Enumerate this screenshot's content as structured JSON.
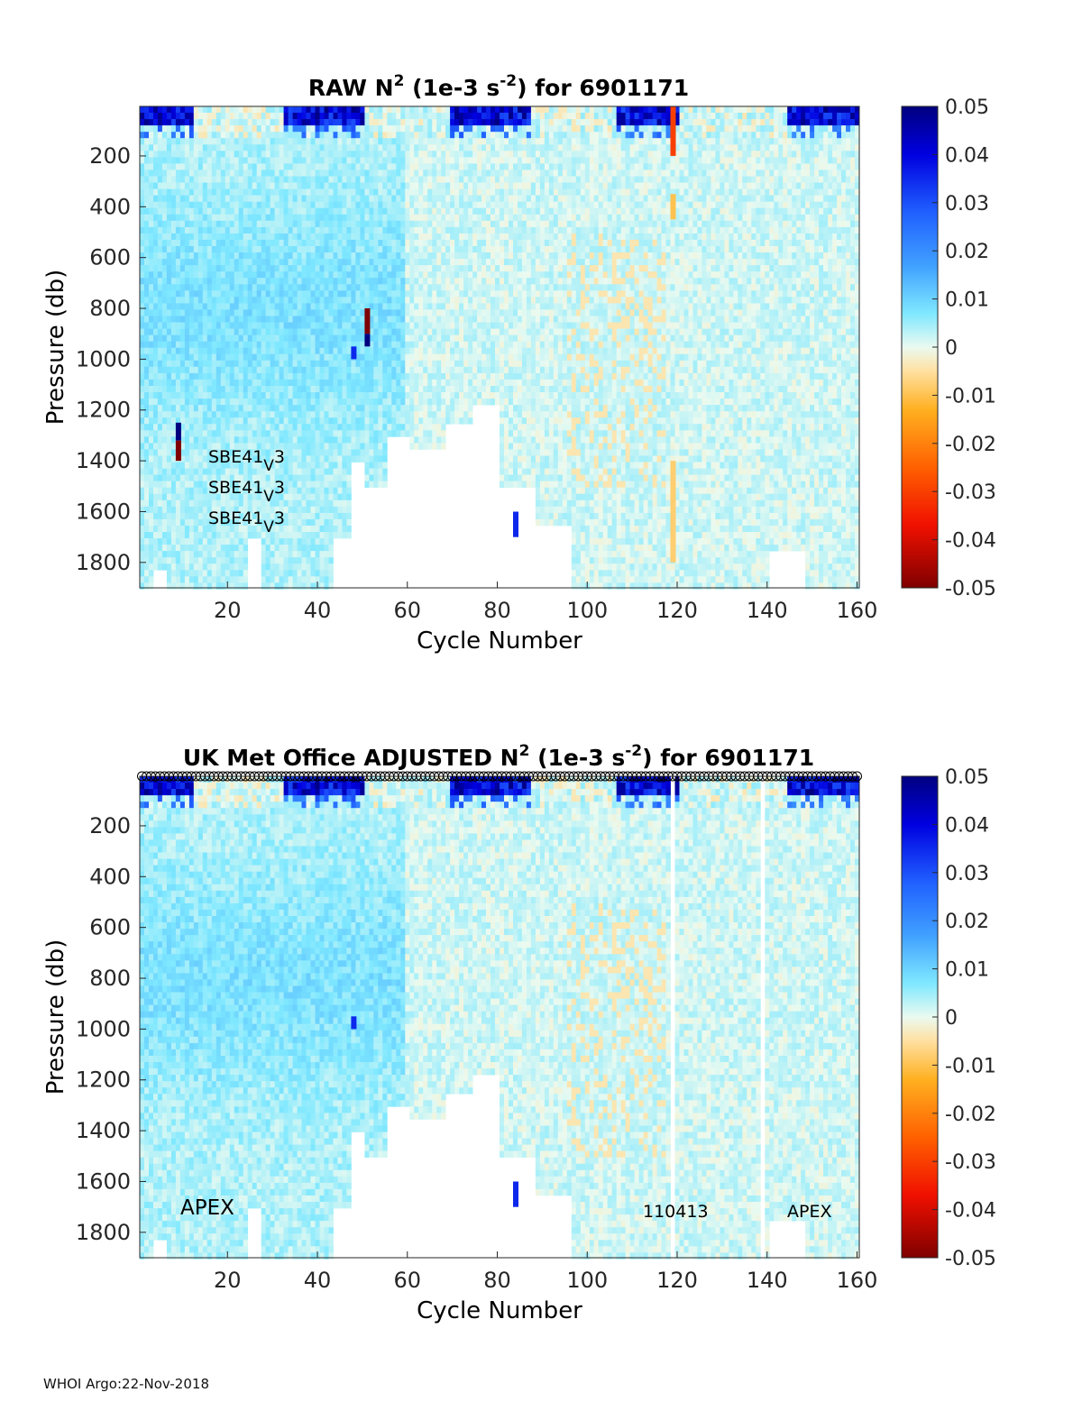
{
  "chart_data": [
    {
      "type": "heatmap",
      "title_prefix": "RAW N",
      "title_sup1": "2",
      "title_middle": " (1e-3 s",
      "title_sup2": "-2",
      "title_suffix": ") for 6901171",
      "xlabel": "Cycle Number",
      "ylabel": "Pressure (db)",
      "xlim": [
        1,
        160
      ],
      "ylim": [
        1900,
        5
      ],
      "xticks": [
        20,
        40,
        60,
        80,
        100,
        120,
        140,
        160
      ],
      "yticks": [
        200,
        400,
        600,
        800,
        1000,
        1200,
        1400,
        1600,
        1800
      ],
      "colorbar": {
        "range": [
          -0.05,
          0.05
        ],
        "ticks": [
          "0.05",
          "0.04",
          "0.03",
          "0.02",
          "0.01",
          "0",
          "-0.01",
          "-0.02",
          "-0.03",
          "-0.04",
          "-0.05"
        ]
      },
      "annotations": [
        "SBE41",
        "V",
        "3"
      ],
      "profile_max_depth": [
        {
          "from": 1,
          "to": 3,
          "depth": 1900
        },
        {
          "from": 4,
          "to": 6,
          "depth": 1820
        },
        {
          "from": 7,
          "to": 24,
          "depth": 1900
        },
        {
          "from": 25,
          "to": 27,
          "depth": 1700
        },
        {
          "from": 28,
          "to": 43,
          "depth": 1900
        },
        {
          "from": 44,
          "to": 47,
          "depth": 1700
        },
        {
          "from": 48,
          "to": 50,
          "depth": 1400
        },
        {
          "from": 51,
          "to": 55,
          "depth": 1500
        },
        {
          "from": 56,
          "to": 60,
          "depth": 1300
        },
        {
          "from": 61,
          "to": 68,
          "depth": 1350
        },
        {
          "from": 69,
          "to": 74,
          "depth": 1250
        },
        {
          "from": 75,
          "to": 80,
          "depth": 1180
        },
        {
          "from": 81,
          "to": 88,
          "depth": 1500
        },
        {
          "from": 89,
          "to": 96,
          "depth": 1650
        },
        {
          "from": 97,
          "to": 140,
          "depth": 1900
        },
        {
          "from": 141,
          "to": 148,
          "depth": 1750
        },
        {
          "from": 149,
          "to": 160,
          "depth": 1900
        }
      ],
      "features": [
        {
          "cycle": 9,
          "pmin": 1250,
          "pmax": 1320,
          "value": 0.05
        },
        {
          "cycle": 9,
          "pmin": 1320,
          "pmax": 1400,
          "value": -0.05
        },
        {
          "cycle": 51,
          "pmin": 800,
          "pmax": 900,
          "value": -0.05
        },
        {
          "cycle": 51,
          "pmin": 900,
          "pmax": 950,
          "value": 0.05
        },
        {
          "cycle": 48,
          "pmin": 950,
          "pmax": 1000,
          "value": 0.035
        },
        {
          "cycle": 84,
          "pmin": 1600,
          "pmax": 1700,
          "value": 0.035
        },
        {
          "cycle": 119,
          "pmin": 5,
          "pmax": 200,
          "value": -0.03
        },
        {
          "cycle": 119,
          "pmin": 350,
          "pmax": 450,
          "value": -0.01
        },
        {
          "cycle": 119,
          "pmin": 1400,
          "pmax": 1800,
          "value": -0.008
        }
      ]
    },
    {
      "type": "heatmap",
      "title_prefix": "UK Met Office  ADJUSTED N",
      "title_sup1": "2",
      "title_middle": " (1e-3 s",
      "title_sup2": "-2",
      "title_suffix": ") for 6901171",
      "xlabel": "Cycle Number",
      "ylabel": "Pressure (db)",
      "xlim": [
        1,
        160
      ],
      "ylim": [
        1900,
        5
      ],
      "xticks": [
        20,
        40,
        60,
        80,
        100,
        120,
        140,
        160
      ],
      "yticks": [
        200,
        400,
        600,
        800,
        1000,
        1200,
        1400,
        1600,
        1800
      ],
      "colorbar": {
        "range": [
          -0.05,
          0.05
        ],
        "ticks": [
          "0.05",
          "0.04",
          "0.03",
          "0.02",
          "0.01",
          "0",
          "-0.01",
          "-0.02",
          "-0.03",
          "-0.04",
          "-0.05"
        ]
      },
      "annotations": [
        "APEX",
        "110413",
        "APEX"
      ],
      "qc_markers": "open circles along top at every cycle",
      "gaps": [
        119,
        139
      ],
      "profile_max_depth": [
        {
          "from": 1,
          "to": 3,
          "depth": 1900
        },
        {
          "from": 4,
          "to": 6,
          "depth": 1820
        },
        {
          "from": 7,
          "to": 24,
          "depth": 1900
        },
        {
          "from": 25,
          "to": 27,
          "depth": 1700
        },
        {
          "from": 28,
          "to": 43,
          "depth": 1900
        },
        {
          "from": 44,
          "to": 47,
          "depth": 1700
        },
        {
          "from": 48,
          "to": 50,
          "depth": 1400
        },
        {
          "from": 51,
          "to": 55,
          "depth": 1500
        },
        {
          "from": 56,
          "to": 60,
          "depth": 1300
        },
        {
          "from": 61,
          "to": 68,
          "depth": 1350
        },
        {
          "from": 69,
          "to": 74,
          "depth": 1250
        },
        {
          "from": 75,
          "to": 80,
          "depth": 1180
        },
        {
          "from": 81,
          "to": 88,
          "depth": 1500
        },
        {
          "from": 89,
          "to": 96,
          "depth": 1650
        },
        {
          "from": 97,
          "to": 140,
          "depth": 1900
        },
        {
          "from": 141,
          "to": 148,
          "depth": 1750
        },
        {
          "from": 149,
          "to": 160,
          "depth": 1900
        }
      ],
      "features": [
        {
          "cycle": 48,
          "pmin": 950,
          "pmax": 1000,
          "value": 0.035
        },
        {
          "cycle": 84,
          "pmin": 1600,
          "pmax": 1700,
          "value": 0.035
        }
      ]
    }
  ],
  "footer": "WHOI Argo:22-Nov-2018"
}
